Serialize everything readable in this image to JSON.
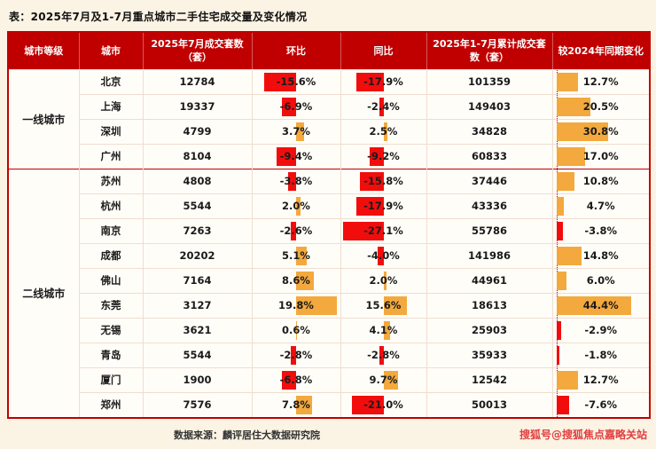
{
  "page": {
    "title": "表：2025年7月及1-7月重点城市二手住宅成交量及变化情况",
    "source": "数据来源：麟评居住大数据研究院",
    "watermark": "搜狐号@搜狐焦点嘉略关站"
  },
  "colors": {
    "header_bg": "#c00000",
    "positive_bar": "#f3a93d",
    "negative_bar": "#f20d0d",
    "page_bg": "#fbf3e4",
    "accent_border": "#c00000",
    "watermark_color": "#e04040"
  },
  "chart_data": {
    "type": "table",
    "columns": [
      "城市等级",
      "城市",
      "2025年7月成交套数（套）",
      "环比",
      "同比",
      "2025年1-7月累计成交套数（套）",
      "较2024年同期变化"
    ],
    "bar_columns": {
      "mom_label": "环比",
      "yoy_label": "同比",
      "vs_label": "较2024年同期变化",
      "positive_color": "#f3a93d",
      "negative_color": "#f20d0d"
    },
    "groups": [
      {
        "tier": "一线城市",
        "rows": [
          {
            "city": "北京",
            "jul_sales": "12784",
            "mom": -15.6,
            "yoy": -17.9,
            "cum_sales": "101359",
            "vs": 12.7
          },
          {
            "city": "上海",
            "jul_sales": "19337",
            "mom": -6.9,
            "yoy": -2.4,
            "cum_sales": "149403",
            "vs": 20.5
          },
          {
            "city": "深圳",
            "jul_sales": "4799",
            "mom": 3.7,
            "yoy": 2.5,
            "cum_sales": "34828",
            "vs": 30.8
          },
          {
            "city": "广州",
            "jul_sales": "8104",
            "mom": -9.4,
            "yoy": -9.2,
            "cum_sales": "60833",
            "vs": 17.0
          }
        ]
      },
      {
        "tier": "二线城市",
        "rows": [
          {
            "city": "苏州",
            "jul_sales": "4808",
            "mom": -3.8,
            "yoy": -15.8,
            "cum_sales": "37446",
            "vs": 10.8
          },
          {
            "city": "杭州",
            "jul_sales": "5544",
            "mom": 2.0,
            "yoy": -17.9,
            "cum_sales": "43336",
            "vs": 4.7
          },
          {
            "city": "南京",
            "jul_sales": "7263",
            "mom": -2.6,
            "yoy": -27.1,
            "cum_sales": "55786",
            "vs": -3.8
          },
          {
            "city": "成都",
            "jul_sales": "20202",
            "mom": 5.1,
            "yoy": -4.0,
            "cum_sales": "141986",
            "vs": 14.8
          },
          {
            "city": "佛山",
            "jul_sales": "7164",
            "mom": 8.6,
            "yoy": 2.0,
            "cum_sales": "44961",
            "vs": 6.0
          },
          {
            "city": "东莞",
            "jul_sales": "3127",
            "mom": 19.8,
            "yoy": 15.6,
            "cum_sales": "18613",
            "vs": 44.4
          },
          {
            "city": "无锡",
            "jul_sales": "3621",
            "mom": 0.6,
            "yoy": 4.1,
            "cum_sales": "25903",
            "vs": -2.9
          },
          {
            "city": "青岛",
            "jul_sales": "5544",
            "mom": -2.8,
            "yoy": -2.8,
            "cum_sales": "35933",
            "vs": -1.8
          },
          {
            "city": "厦门",
            "jul_sales": "1900",
            "mom": -6.8,
            "yoy": 9.7,
            "cum_sales": "12542",
            "vs": 12.7
          },
          {
            "city": "郑州",
            "jul_sales": "7576",
            "mom": 7.8,
            "yoy": -21.0,
            "cum_sales": "50013",
            "vs": -7.6
          }
        ]
      }
    ]
  }
}
